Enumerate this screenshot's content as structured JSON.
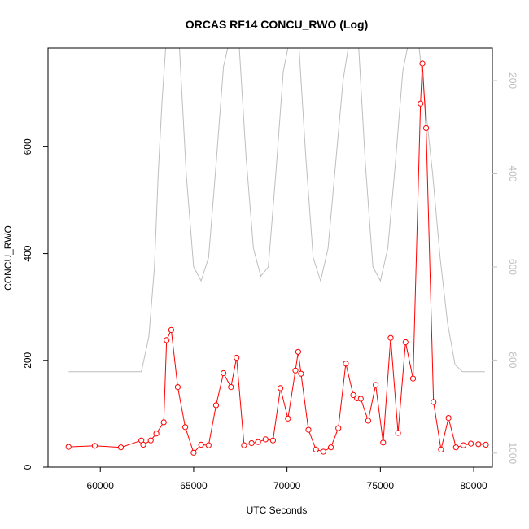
{
  "chart_data": {
    "type": "line",
    "title": "ORCAS RF14 CONCU_RWO (Log)",
    "xlabel": "UTC Seconds",
    "ylabel": "CONCU_RWO",
    "xlim": [
      57200,
      81000
    ],
    "ylim": [
      0,
      785
    ],
    "x_ticks": [
      60000,
      65000,
      70000,
      75000,
      80000
    ],
    "y_ticks": [
      0,
      200,
      400,
      600
    ],
    "grid": false,
    "legend": "none",
    "series": [
      {
        "color": "#ff0000",
        "markers": "open-circle",
        "x": [
          58300,
          59700,
          61100,
          62200,
          62300,
          62700,
          63000,
          63400,
          63550,
          63800,
          64150,
          64550,
          65000,
          65400,
          65800,
          66200,
          66600,
          67000,
          67300,
          67700,
          68100,
          68450,
          68850,
          69250,
          69650,
          70050,
          70450,
          70600,
          70750,
          71150,
          71550,
          71950,
          72350,
          72750,
          73150,
          73550,
          73750,
          73950,
          74350,
          74750,
          75150,
          75550,
          75950,
          76350,
          76750,
          77150,
          77250,
          77450,
          77850,
          78250,
          78650,
          79050,
          79450,
          79850,
          80250,
          80650
        ],
        "y": [
          38,
          40,
          37,
          50,
          42,
          50,
          63,
          84,
          238,
          257,
          150,
          75,
          27,
          42,
          41,
          116,
          176,
          150,
          205,
          41,
          45,
          47,
          52,
          50,
          148,
          91,
          181,
          216,
          175,
          70,
          33,
          29,
          37,
          73,
          194,
          135,
          129,
          128,
          87,
          154,
          46,
          242,
          64,
          234,
          166,
          681,
          756,
          635,
          122,
          33,
          92,
          37,
          41,
          44,
          43,
          42
        ]
      },
      {
        "color": "#bebebe",
        "markers": "none",
        "axis": "right",
        "x": [
          58300,
          62200,
          62600,
          62900,
          63100,
          63300,
          63550,
          63800,
          64200,
          64600,
          65000,
          65400,
          65800,
          66200,
          66600,
          67000,
          67400,
          67800,
          68200,
          68600,
          69000,
          69400,
          69800,
          70200,
          70600,
          71000,
          71400,
          71800,
          72200,
          72600,
          73000,
          73400,
          73800,
          74200,
          74600,
          75000,
          75400,
          75800,
          76200,
          76600,
          77000,
          77400,
          77800,
          78200,
          78600,
          79000,
          79400,
          80600
        ],
        "y": [
          825,
          825,
          750,
          600,
          400,
          250,
          100,
          100,
          100,
          400,
          600,
          630,
          580,
          380,
          170,
          100,
          100,
          360,
          560,
          620,
          600,
          400,
          180,
          100,
          100,
          360,
          580,
          630,
          560,
          380,
          200,
          100,
          100,
          380,
          600,
          630,
          560,
          380,
          180,
          100,
          100,
          250,
          400,
          580,
          720,
          810,
          825,
          825
        ],
        "ylim": [
          1030,
          130
        ],
        "ticks": [
          200,
          400,
          600,
          800,
          1000
        ]
      }
    ]
  }
}
